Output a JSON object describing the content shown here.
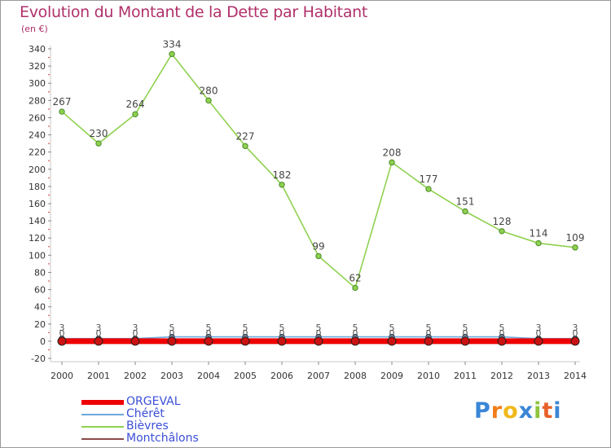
{
  "chart_data": {
    "type": "line",
    "title": "Evolution du Montant de la Dette par Habitant",
    "subtitle": "(en €)",
    "x": [
      "2000",
      "2001",
      "2002",
      "2003",
      "2004",
      "2005",
      "2006",
      "2007",
      "2008",
      "2009",
      "2010",
      "2011",
      "2012",
      "2013",
      "2014"
    ],
    "ylim": [
      -20,
      340
    ],
    "yticks": [
      -20,
      0,
      20,
      40,
      60,
      80,
      100,
      120,
      140,
      160,
      180,
      200,
      220,
      240,
      260,
      280,
      300,
      320,
      340
    ],
    "grid": false,
    "legend_position": "bottom-left",
    "series": [
      {
        "name": "ORGEVAL",
        "color": "#ee0000",
        "values": [
          0,
          0,
          0,
          0,
          0,
          0,
          0,
          0,
          0,
          0,
          0,
          0,
          0,
          0,
          0
        ],
        "labels": false
      },
      {
        "name": "Chérêt",
        "color": "#6fa8dc",
        "values": [
          3,
          3,
          3,
          5,
          5,
          5,
          5,
          5,
          5,
          5,
          5,
          5,
          5,
          3,
          3
        ],
        "labels": false
      },
      {
        "name": "Bièvres",
        "color": "#8fd14f",
        "values": [
          267,
          230,
          264,
          334,
          280,
          227,
          182,
          99,
          62,
          208,
          177,
          151,
          128,
          114,
          109
        ],
        "labels": true
      },
      {
        "name": "Montchâlons",
        "color": "#8b4a4a",
        "values": [
          0,
          0,
          0,
          0,
          0,
          0,
          0,
          0,
          0,
          0,
          0,
          0,
          0,
          0,
          0
        ],
        "labels": false
      }
    ],
    "small_labels": [
      "0",
      "0",
      "0",
      "0",
      "0",
      "0",
      "0",
      "0",
      "0",
      "0",
      "0",
      "0",
      "0",
      "0",
      "0"
    ],
    "small_labels_2": [
      "3",
      "3",
      "3",
      "5",
      "5",
      "5",
      "5",
      "5",
      "5",
      "5",
      "5",
      "5",
      "5",
      "3",
      "3"
    ]
  },
  "logo": {
    "letters": [
      "P",
      "r",
      "o",
      "x",
      "i",
      "t",
      "i"
    ],
    "colors": [
      "#3a86d6",
      "#f07d1a",
      "#f0b81a",
      "#3a86d6",
      "#8fc540",
      "#e8602a",
      "#3a86d6"
    ]
  }
}
